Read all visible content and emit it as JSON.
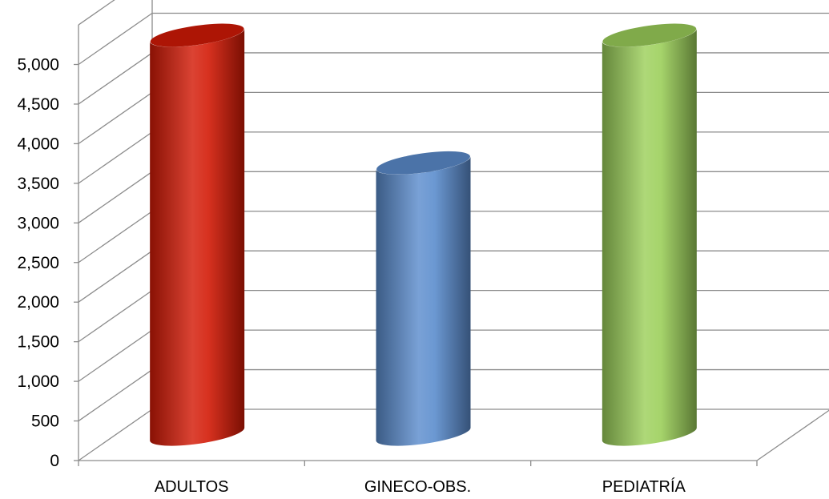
{
  "chart_data": {
    "type": "bar",
    "bar_shape": "cylinder",
    "three_d": true,
    "categories": [
      "ADULTOS",
      "GINECO-OBS.",
      "PEDIATRÍA"
    ],
    "values": [
      5000,
      3400,
      5000
    ],
    "colors": [
      "#d31a06",
      "#5b8ccd",
      "#9ccf5a"
    ],
    "ylim": [
      0,
      5500
    ],
    "yticks": [
      0,
      500,
      1000,
      1500,
      2000,
      2500,
      3000,
      3500,
      4000,
      4500,
      5000
    ],
    "ytick_labels": [
      "0",
      "500",
      "1,000",
      "1,500",
      "2,000",
      "2,500",
      "3,000",
      "3,500",
      "4,000",
      "4,500",
      "5,000"
    ],
    "grid": true,
    "legend": "none",
    "title": "",
    "xlabel": "",
    "ylabel": ""
  }
}
